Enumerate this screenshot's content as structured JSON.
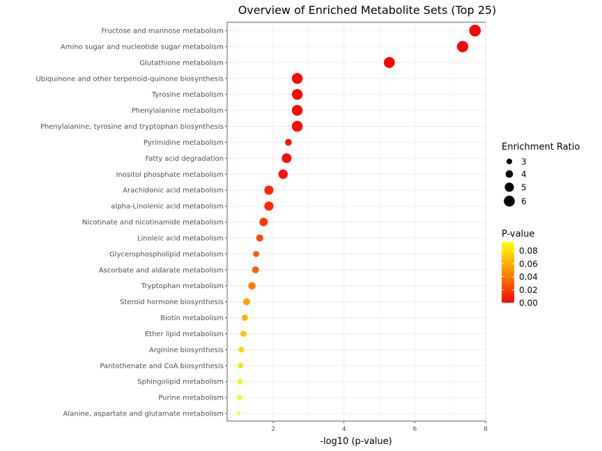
{
  "chart_data": {
    "type": "scatter",
    "title": "Overview of Enriched Metabolite Sets (Top 25)",
    "xlabel": "-log10 (p-value)",
    "ylabel": "",
    "xlim": [
      0.7,
      8.0
    ],
    "xticks": [
      2,
      4,
      6,
      8
    ],
    "grid": true,
    "points": [
      {
        "category": "Fructose and mannose metabolism",
        "x": 7.7,
        "enrichment_ratio": 6.4,
        "p_value": 2e-08
      },
      {
        "category": "Amino sugar and nucleotide sugar metabolism",
        "x": 7.35,
        "enrichment_ratio": 6.2,
        "p_value": 4e-08
      },
      {
        "category": "Glutathione metabolism",
        "x": 5.28,
        "enrichment_ratio": 6.0,
        "p_value": 5e-06
      },
      {
        "category": "Ubiquinone and other terpenoid-quinone biosynthesis",
        "x": 2.68,
        "enrichment_ratio": 5.9,
        "p_value": 0.002
      },
      {
        "category": "Tyrosine metabolism",
        "x": 2.68,
        "enrichment_ratio": 5.9,
        "p_value": 0.002
      },
      {
        "category": "Phenylalanine metabolism",
        "x": 2.68,
        "enrichment_ratio": 5.9,
        "p_value": 0.002
      },
      {
        "category": "Phenylalanine, tyrosine and tryptophan biosynthesis",
        "x": 2.68,
        "enrichment_ratio": 5.9,
        "p_value": 0.002
      },
      {
        "category": "Pyrimidine metabolism",
        "x": 2.43,
        "enrichment_ratio": 3.6,
        "p_value": 0.004
      },
      {
        "category": "Fatty acid degradation",
        "x": 2.38,
        "enrichment_ratio": 5.3,
        "p_value": 0.004
      },
      {
        "category": "Inositol phosphate metabolism",
        "x": 2.28,
        "enrichment_ratio": 5.1,
        "p_value": 0.005
      },
      {
        "category": "Arachidonic acid metabolism",
        "x": 1.88,
        "enrichment_ratio": 5.0,
        "p_value": 0.013
      },
      {
        "category": "alpha-Linolenic acid metabolism",
        "x": 1.88,
        "enrichment_ratio": 5.0,
        "p_value": 0.013
      },
      {
        "category": "Nicotinate and nicotinamide metabolism",
        "x": 1.73,
        "enrichment_ratio": 4.6,
        "p_value": 0.019
      },
      {
        "category": "Linoleic acid metabolism",
        "x": 1.62,
        "enrichment_ratio": 3.8,
        "p_value": 0.024
      },
      {
        "category": "Glycerophospholipid metabolism",
        "x": 1.52,
        "enrichment_ratio": 3.2,
        "p_value": 0.03
      },
      {
        "category": "Ascorbate and aldarate metabolism",
        "x": 1.5,
        "enrichment_ratio": 3.7,
        "p_value": 0.032
      },
      {
        "category": "Tryptophan metabolism",
        "x": 1.4,
        "enrichment_ratio": 4.0,
        "p_value": 0.04
      },
      {
        "category": "Steroid hormone biosynthesis",
        "x": 1.25,
        "enrichment_ratio": 3.8,
        "p_value": 0.056
      },
      {
        "category": "Biotin metabolism",
        "x": 1.2,
        "enrichment_ratio": 3.3,
        "p_value": 0.063
      },
      {
        "category": "Ether lipid metabolism",
        "x": 1.16,
        "enrichment_ratio": 3.2,
        "p_value": 0.069
      },
      {
        "category": "Arginine biosynthesis",
        "x": 1.1,
        "enrichment_ratio": 3.0,
        "p_value": 0.079
      },
      {
        "category": "Pantothenate and CoA biosynthesis",
        "x": 1.08,
        "enrichment_ratio": 2.9,
        "p_value": 0.083
      },
      {
        "category": "Sphingolipid metabolism",
        "x": 1.06,
        "enrichment_ratio": 2.7,
        "p_value": 0.087
      },
      {
        "category": "Purine metabolism",
        "x": 1.05,
        "enrichment_ratio": 2.5,
        "p_value": 0.089
      },
      {
        "category": "Alanine, aspartate and glutamate metabolism",
        "x": 1.03,
        "enrichment_ratio": 1.7,
        "p_value": 0.093
      }
    ],
    "size_legend": {
      "title": "Enrichment Ratio",
      "breaks": [
        3,
        4,
        5,
        6
      ],
      "labels": [
        "3",
        "4",
        "5",
        "6"
      ]
    },
    "color_legend": {
      "title": "P-value",
      "breaks": [
        0.0,
        0.02,
        0.04,
        0.06,
        0.08
      ],
      "labels": [
        "0.00",
        "0.02",
        "0.04",
        "0.06",
        "0.08"
      ],
      "low_color": "#FF0000",
      "mid_color": "#FF8000",
      "high_color": "#FFFF00",
      "range": [
        0.0,
        0.093
      ]
    },
    "legend_position": "right",
    "point_outline": "none"
  }
}
